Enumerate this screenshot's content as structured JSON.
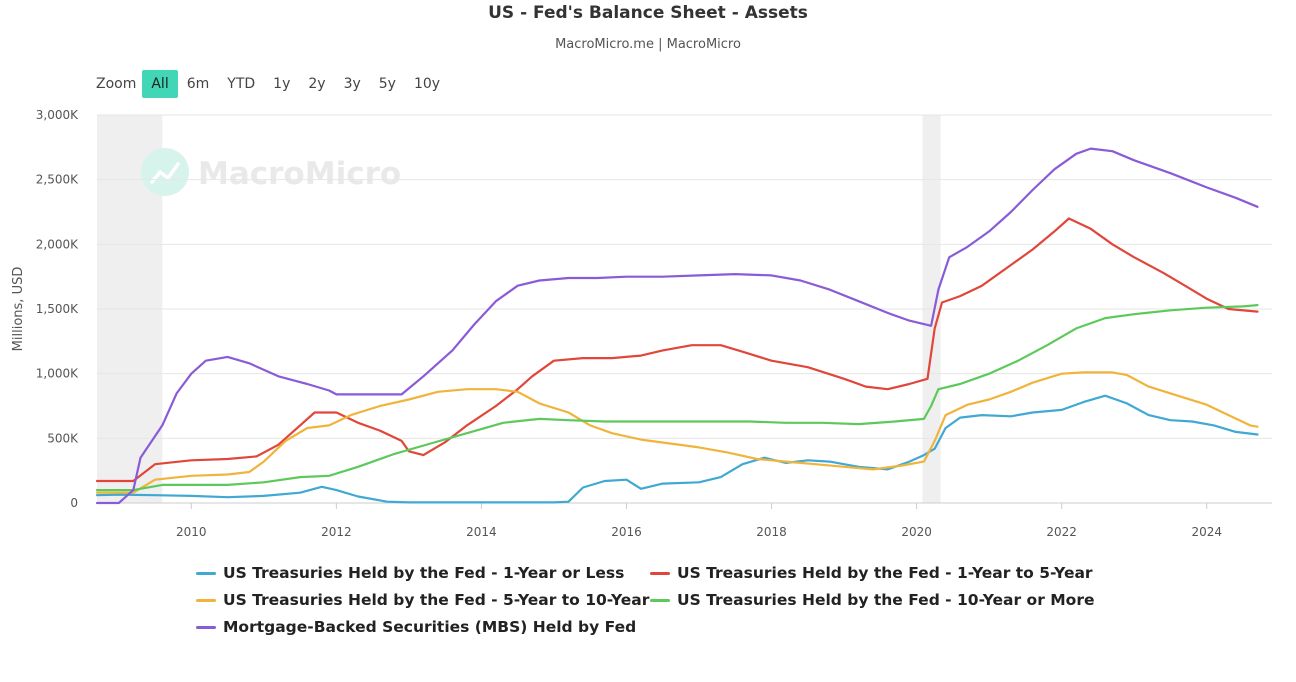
{
  "title": "US - Fed's Balance Sheet - Assets",
  "subtitle": "MacroMicro.me | MacroMicro",
  "watermark": "MacroMicro",
  "zoom": {
    "label": "Zoom",
    "buttons": [
      "All",
      "6m",
      "YTD",
      "1y",
      "2y",
      "3y",
      "5y",
      "10y"
    ],
    "active": "All"
  },
  "chart_data": {
    "type": "line",
    "title": "US - Fed's Balance Sheet - Assets",
    "ylabel": "Millions, USD",
    "xlabel": "",
    "ylim": [
      0,
      3000000
    ],
    "xlim": [
      2008.7,
      2024.9
    ],
    "y_ticks": [
      0,
      500000,
      1000000,
      1500000,
      2000000,
      2500000,
      3000000
    ],
    "y_tick_labels": [
      "0",
      "500K",
      "1,000K",
      "1,500K",
      "2,000K",
      "2,500K",
      "3,000K"
    ],
    "x_ticks": [
      2010,
      2012,
      2014,
      2016,
      2018,
      2020,
      2022,
      2024
    ],
    "x_tick_labels": [
      "2010",
      "2012",
      "2014",
      "2016",
      "2018",
      "2020",
      "2022",
      "2024"
    ],
    "recession_bands": [
      [
        2008.7,
        2009.6
      ],
      [
        2020.08,
        2020.33
      ]
    ],
    "grid": true,
    "legend_position": "bottom",
    "series": [
      {
        "name": "US Treasuries Held by the Fed - 1-Year or Less",
        "color": "#3fa9d4",
        "points": [
          [
            2008.7,
            60000
          ],
          [
            2009.0,
            65000
          ],
          [
            2009.5,
            60000
          ],
          [
            2010.0,
            55000
          ],
          [
            2010.5,
            45000
          ],
          [
            2011.0,
            55000
          ],
          [
            2011.5,
            80000
          ],
          [
            2011.8,
            125000
          ],
          [
            2012.0,
            100000
          ],
          [
            2012.3,
            50000
          ],
          [
            2012.7,
            10000
          ],
          [
            2013.0,
            5000
          ],
          [
            2014.0,
            5000
          ],
          [
            2015.0,
            5000
          ],
          [
            2015.2,
            10000
          ],
          [
            2015.4,
            120000
          ],
          [
            2015.7,
            170000
          ],
          [
            2016.0,
            180000
          ],
          [
            2016.2,
            110000
          ],
          [
            2016.5,
            150000
          ],
          [
            2017.0,
            160000
          ],
          [
            2017.3,
            200000
          ],
          [
            2017.6,
            300000
          ],
          [
            2017.9,
            350000
          ],
          [
            2018.2,
            310000
          ],
          [
            2018.5,
            330000
          ],
          [
            2018.8,
            320000
          ],
          [
            2019.2,
            280000
          ],
          [
            2019.6,
            260000
          ],
          [
            2019.9,
            320000
          ],
          [
            2020.1,
            370000
          ],
          [
            2020.25,
            420000
          ],
          [
            2020.4,
            580000
          ],
          [
            2020.6,
            660000
          ],
          [
            2020.9,
            680000
          ],
          [
            2021.3,
            670000
          ],
          [
            2021.6,
            700000
          ],
          [
            2022.0,
            720000
          ],
          [
            2022.3,
            780000
          ],
          [
            2022.6,
            830000
          ],
          [
            2022.9,
            770000
          ],
          [
            2023.2,
            680000
          ],
          [
            2023.5,
            640000
          ],
          [
            2023.8,
            630000
          ],
          [
            2024.1,
            600000
          ],
          [
            2024.4,
            550000
          ],
          [
            2024.7,
            530000
          ]
        ]
      },
      {
        "name": "US Treasuries Held by the Fed - 1-Year to 5-Year",
        "color": "#e0473a",
        "points": [
          [
            2008.7,
            170000
          ],
          [
            2009.2,
            170000
          ],
          [
            2009.5,
            300000
          ],
          [
            2010.0,
            330000
          ],
          [
            2010.5,
            340000
          ],
          [
            2010.9,
            360000
          ],
          [
            2011.2,
            450000
          ],
          [
            2011.5,
            600000
          ],
          [
            2011.7,
            700000
          ],
          [
            2012.0,
            700000
          ],
          [
            2012.3,
            620000
          ],
          [
            2012.6,
            560000
          ],
          [
            2012.9,
            480000
          ],
          [
            2013.0,
            400000
          ],
          [
            2013.2,
            370000
          ],
          [
            2013.5,
            470000
          ],
          [
            2013.8,
            600000
          ],
          [
            2014.2,
            750000
          ],
          [
            2014.5,
            880000
          ],
          [
            2014.7,
            980000
          ],
          [
            2015.0,
            1100000
          ],
          [
            2015.4,
            1120000
          ],
          [
            2015.8,
            1120000
          ],
          [
            2016.2,
            1140000
          ],
          [
            2016.5,
            1180000
          ],
          [
            2016.9,
            1220000
          ],
          [
            2017.3,
            1220000
          ],
          [
            2017.6,
            1170000
          ],
          [
            2018.0,
            1100000
          ],
          [
            2018.5,
            1050000
          ],
          [
            2019.0,
            960000
          ],
          [
            2019.3,
            900000
          ],
          [
            2019.6,
            880000
          ],
          [
            2019.9,
            920000
          ],
          [
            2020.15,
            960000
          ],
          [
            2020.25,
            1350000
          ],
          [
            2020.35,
            1550000
          ],
          [
            2020.6,
            1600000
          ],
          [
            2020.9,
            1680000
          ],
          [
            2021.3,
            1840000
          ],
          [
            2021.6,
            1960000
          ],
          [
            2021.9,
            2100000
          ],
          [
            2022.1,
            2200000
          ],
          [
            2022.4,
            2120000
          ],
          [
            2022.7,
            2000000
          ],
          [
            2023.0,
            1900000
          ],
          [
            2023.4,
            1780000
          ],
          [
            2023.7,
            1680000
          ],
          [
            2024.0,
            1580000
          ],
          [
            2024.3,
            1500000
          ],
          [
            2024.7,
            1480000
          ]
        ]
      },
      {
        "name": "US Treasuries Held by the Fed - 5-Year to 10-Year",
        "color": "#f0b43c",
        "points": [
          [
            2008.7,
            80000
          ],
          [
            2009.2,
            80000
          ],
          [
            2009.5,
            180000
          ],
          [
            2010.0,
            210000
          ],
          [
            2010.5,
            220000
          ],
          [
            2010.8,
            240000
          ],
          [
            2011.0,
            320000
          ],
          [
            2011.3,
            480000
          ],
          [
            2011.6,
            580000
          ],
          [
            2011.9,
            600000
          ],
          [
            2012.2,
            680000
          ],
          [
            2012.6,
            750000
          ],
          [
            2013.0,
            800000
          ],
          [
            2013.4,
            860000
          ],
          [
            2013.8,
            880000
          ],
          [
            2014.2,
            880000
          ],
          [
            2014.5,
            860000
          ],
          [
            2014.8,
            770000
          ],
          [
            2015.2,
            700000
          ],
          [
            2015.5,
            600000
          ],
          [
            2015.8,
            540000
          ],
          [
            2016.2,
            490000
          ],
          [
            2016.6,
            460000
          ],
          [
            2017.0,
            430000
          ],
          [
            2017.4,
            390000
          ],
          [
            2017.8,
            340000
          ],
          [
            2018.2,
            320000
          ],
          [
            2018.6,
            300000
          ],
          [
            2019.0,
            280000
          ],
          [
            2019.4,
            260000
          ],
          [
            2019.8,
            290000
          ],
          [
            2020.1,
            320000
          ],
          [
            2020.25,
            480000
          ],
          [
            2020.4,
            680000
          ],
          [
            2020.7,
            760000
          ],
          [
            2021.0,
            800000
          ],
          [
            2021.3,
            860000
          ],
          [
            2021.6,
            930000
          ],
          [
            2022.0,
            1000000
          ],
          [
            2022.3,
            1010000
          ],
          [
            2022.7,
            1010000
          ],
          [
            2022.9,
            990000
          ],
          [
            2023.2,
            900000
          ],
          [
            2023.6,
            830000
          ],
          [
            2024.0,
            760000
          ],
          [
            2024.3,
            680000
          ],
          [
            2024.6,
            600000
          ],
          [
            2024.7,
            590000
          ]
        ]
      },
      {
        "name": "US Treasuries Held by the Fed - 10-Year or More",
        "color": "#5cc95a",
        "points": [
          [
            2008.7,
            100000
          ],
          [
            2009.2,
            100000
          ],
          [
            2009.6,
            140000
          ],
          [
            2010.0,
            140000
          ],
          [
            2010.5,
            140000
          ],
          [
            2011.0,
            160000
          ],
          [
            2011.5,
            200000
          ],
          [
            2011.9,
            210000
          ],
          [
            2012.3,
            280000
          ],
          [
            2012.8,
            380000
          ],
          [
            2013.3,
            460000
          ],
          [
            2013.8,
            540000
          ],
          [
            2014.3,
            620000
          ],
          [
            2014.8,
            650000
          ],
          [
            2015.2,
            640000
          ],
          [
            2015.7,
            630000
          ],
          [
            2016.2,
            630000
          ],
          [
            2016.7,
            630000
          ],
          [
            2017.2,
            630000
          ],
          [
            2017.7,
            630000
          ],
          [
            2018.2,
            620000
          ],
          [
            2018.7,
            620000
          ],
          [
            2019.2,
            610000
          ],
          [
            2019.7,
            630000
          ],
          [
            2020.1,
            650000
          ],
          [
            2020.2,
            750000
          ],
          [
            2020.3,
            880000
          ],
          [
            2020.6,
            920000
          ],
          [
            2021.0,
            1000000
          ],
          [
            2021.4,
            1100000
          ],
          [
            2021.8,
            1220000
          ],
          [
            2022.2,
            1350000
          ],
          [
            2022.6,
            1430000
          ],
          [
            2023.0,
            1460000
          ],
          [
            2023.5,
            1490000
          ],
          [
            2024.0,
            1510000
          ],
          [
            2024.5,
            1520000
          ],
          [
            2024.7,
            1530000
          ]
        ]
      },
      {
        "name": "Mortgage-Backed Securities (MBS) Held by Fed",
        "color": "#8a5bd6",
        "points": [
          [
            2008.7,
            0
          ],
          [
            2009.0,
            0
          ],
          [
            2009.2,
            100000
          ],
          [
            2009.3,
            350000
          ],
          [
            2009.6,
            600000
          ],
          [
            2009.8,
            850000
          ],
          [
            2010.0,
            1000000
          ],
          [
            2010.2,
            1100000
          ],
          [
            2010.5,
            1130000
          ],
          [
            2010.8,
            1080000
          ],
          [
            2011.2,
            980000
          ],
          [
            2011.6,
            920000
          ],
          [
            2011.9,
            870000
          ],
          [
            2012.0,
            840000
          ],
          [
            2012.5,
            840000
          ],
          [
            2012.9,
            840000
          ],
          [
            2013.2,
            980000
          ],
          [
            2013.6,
            1180000
          ],
          [
            2013.9,
            1380000
          ],
          [
            2014.2,
            1560000
          ],
          [
            2014.5,
            1680000
          ],
          [
            2014.8,
            1720000
          ],
          [
            2015.2,
            1740000
          ],
          [
            2015.6,
            1740000
          ],
          [
            2016.0,
            1750000
          ],
          [
            2016.5,
            1750000
          ],
          [
            2017.0,
            1760000
          ],
          [
            2017.5,
            1770000
          ],
          [
            2018.0,
            1760000
          ],
          [
            2018.4,
            1720000
          ],
          [
            2018.8,
            1650000
          ],
          [
            2019.2,
            1560000
          ],
          [
            2019.6,
            1470000
          ],
          [
            2019.9,
            1410000
          ],
          [
            2020.2,
            1370000
          ],
          [
            2020.3,
            1650000
          ],
          [
            2020.45,
            1900000
          ],
          [
            2020.7,
            1980000
          ],
          [
            2021.0,
            2100000
          ],
          [
            2021.3,
            2250000
          ],
          [
            2021.6,
            2420000
          ],
          [
            2021.9,
            2580000
          ],
          [
            2022.2,
            2700000
          ],
          [
            2022.4,
            2740000
          ],
          [
            2022.7,
            2720000
          ],
          [
            2023.0,
            2650000
          ],
          [
            2023.5,
            2550000
          ],
          [
            2024.0,
            2440000
          ],
          [
            2024.4,
            2360000
          ],
          [
            2024.7,
            2290000
          ]
        ]
      }
    ]
  }
}
